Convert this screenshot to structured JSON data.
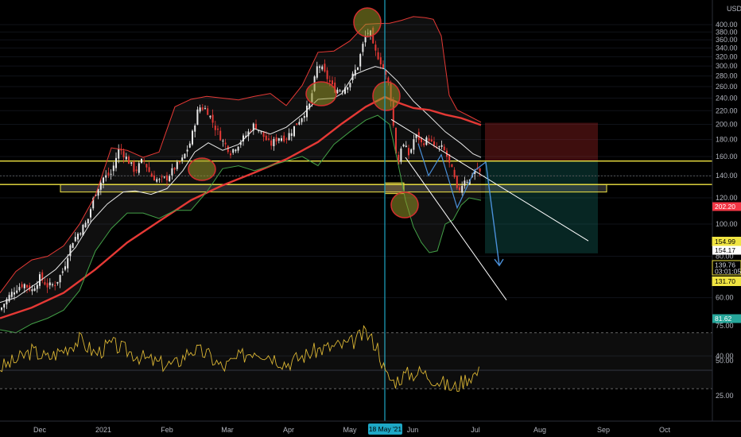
{
  "chart_data": {
    "type": "candlestick",
    "currency": "USD",
    "price_axis": {
      "min": 30,
      "max": 420,
      "scale": "log",
      "ticks": [
        40,
        60,
        80,
        100,
        120,
        140,
        160,
        180,
        200,
        220,
        240,
        260,
        280,
        300,
        320,
        340,
        360,
        380,
        400
      ]
    },
    "time_axis": {
      "labels": [
        "Dec",
        "2021",
        "Feb",
        "Mar",
        "Apr",
        "May",
        "Jun",
        "Jul",
        "Aug",
        "Sep",
        "Oct"
      ],
      "crosshair_date": "18 May '21"
    },
    "price_tags": [
      {
        "value": "202.20",
        "color": "#f23645",
        "text_color": "#ffffff"
      },
      {
        "value": "154.99",
        "color": "#f0e442",
        "text_color": "#000000"
      },
      {
        "value": "154.17",
        "color": "#ffffff",
        "text_color": "#000000"
      },
      {
        "value": "139.76",
        "extra": "03:01:05",
        "color": "#000000",
        "text_color": "#d1d4dc"
      },
      {
        "value": "131.70",
        "color": "#f0e442",
        "text_color": "#000000"
      },
      {
        "value": "81.62",
        "color": "#26a69a",
        "text_color": "#ffffff"
      }
    ],
    "horizontal_levels": [
      154.99,
      131.7
    ],
    "support_zone": [
      125,
      131.7
    ],
    "series": [
      {
        "kind": "ma_fast",
        "color": "#e8e8e8",
        "values": [
          [
            0,
            58
          ],
          [
            20,
            60
          ],
          [
            45,
            66
          ],
          [
            70,
            73
          ],
          [
            95,
            85
          ],
          [
            115,
            102
          ],
          [
            135,
            115
          ],
          [
            155,
            125
          ],
          [
            170,
            126
          ],
          [
            190,
            123
          ],
          [
            210,
            128
          ],
          [
            230,
            145
          ],
          [
            245,
            165
          ],
          [
            262,
            176
          ],
          [
            280,
            167
          ],
          [
            300,
            174
          ],
          [
            320,
            194
          ],
          [
            340,
            187
          ],
          [
            360,
            196
          ],
          [
            380,
            214
          ],
          [
            400,
            238
          ],
          [
            420,
            240
          ],
          [
            430,
            248
          ],
          [
            445,
            282
          ],
          [
            460,
            292
          ],
          [
            472,
            299
          ],
          [
            484,
            294
          ],
          [
            500,
            270
          ],
          [
            520,
            235
          ],
          [
            540,
            212
          ],
          [
            560,
            190
          ],
          [
            580,
            175
          ],
          [
            595,
            163
          ],
          [
            605,
            159
          ]
        ]
      },
      {
        "kind": "ma_slow",
        "color": "#e53935",
        "values": [
          [
            0,
            52
          ],
          [
            40,
            56
          ],
          [
            80,
            62
          ],
          [
            120,
            73
          ],
          [
            160,
            88
          ],
          [
            200,
            102
          ],
          [
            240,
            118
          ],
          [
            280,
            131
          ],
          [
            320,
            143
          ],
          [
            360,
            157
          ],
          [
            400,
            177
          ],
          [
            430,
            201
          ],
          [
            460,
            226
          ],
          [
            484,
            242
          ],
          [
            500,
            233
          ],
          [
            520,
            224
          ],
          [
            540,
            221
          ],
          [
            560,
            214
          ],
          [
            580,
            209
          ],
          [
            605,
            199
          ]
        ]
      },
      {
        "kind": "band_upper",
        "color": "#e53935",
        "values": [
          [
            0,
            62
          ],
          [
            20,
            72
          ],
          [
            40,
            78
          ],
          [
            60,
            80
          ],
          [
            80,
            86
          ],
          [
            100,
            100
          ],
          [
            120,
            122
          ],
          [
            140,
            170
          ],
          [
            160,
            167
          ],
          [
            180,
            159
          ],
          [
            200,
            165
          ],
          [
            220,
            226
          ],
          [
            240,
            238
          ],
          [
            260,
            243
          ],
          [
            280,
            240
          ],
          [
            300,
            237
          ],
          [
            320,
            243
          ],
          [
            340,
            248
          ],
          [
            360,
            228
          ],
          [
            380,
            262
          ],
          [
            400,
            330
          ],
          [
            420,
            333
          ],
          [
            440,
            357
          ],
          [
            460,
            401
          ],
          [
            475,
            403
          ],
          [
            490,
            404
          ],
          [
            505,
            412
          ],
          [
            520,
            423
          ],
          [
            535,
            420
          ],
          [
            545,
            415
          ],
          [
            555,
            370
          ],
          [
            565,
            245
          ],
          [
            575,
            221
          ],
          [
            590,
            212
          ],
          [
            605,
            203
          ]
        ]
      },
      {
        "kind": "band_lower",
        "color": "#43a047",
        "values": [
          [
            0,
            48
          ],
          [
            20,
            47
          ],
          [
            40,
            50
          ],
          [
            60,
            52
          ],
          [
            80,
            55
          ],
          [
            100,
            63
          ],
          [
            120,
            83
          ],
          [
            140,
            97
          ],
          [
            160,
            108
          ],
          [
            180,
            108
          ],
          [
            200,
            104
          ],
          [
            220,
            110
          ],
          [
            240,
            110
          ],
          [
            260,
            125
          ],
          [
            280,
            147
          ],
          [
            300,
            150
          ],
          [
            320,
            145
          ],
          [
            340,
            150
          ],
          [
            360,
            155
          ],
          [
            380,
            160
          ],
          [
            400,
            150
          ],
          [
            420,
            174
          ],
          [
            440,
            190
          ],
          [
            460,
            206
          ],
          [
            475,
            213
          ],
          [
            490,
            200
          ],
          [
            500,
            155
          ],
          [
            510,
            118
          ],
          [
            520,
            98
          ],
          [
            530,
            88
          ],
          [
            540,
            82
          ],
          [
            550,
            83
          ],
          [
            560,
            100
          ],
          [
            570,
            103
          ],
          [
            580,
            114
          ],
          [
            590,
            120
          ],
          [
            605,
            118
          ]
        ]
      },
      {
        "kind": "price_path",
        "values": [
          [
            0,
            55
          ],
          [
            10,
            60
          ],
          [
            20,
            64
          ],
          [
            30,
            66
          ],
          [
            40,
            63
          ],
          [
            50,
            69
          ],
          [
            60,
            65
          ],
          [
            70,
            66
          ],
          [
            80,
            73
          ],
          [
            90,
            88
          ],
          [
            100,
            95
          ],
          [
            110,
            102
          ],
          [
            120,
            125
          ],
          [
            130,
            138
          ],
          [
            140,
            142
          ],
          [
            150,
            170
          ],
          [
            160,
            157
          ],
          [
            170,
            144
          ],
          [
            180,
            157
          ],
          [
            190,
            140
          ],
          [
            200,
            135
          ],
          [
            210,
            138
          ],
          [
            220,
            148
          ],
          [
            230,
            157
          ],
          [
            240,
            178
          ],
          [
            250,
            226
          ],
          [
            260,
            222
          ],
          [
            270,
            197
          ],
          [
            280,
            178
          ],
          [
            290,
            165
          ],
          [
            300,
            175
          ],
          [
            310,
            186
          ],
          [
            320,
            200
          ],
          [
            330,
            186
          ],
          [
            340,
            173
          ],
          [
            350,
            183
          ],
          [
            360,
            182
          ],
          [
            370,
            196
          ],
          [
            380,
            212
          ],
          [
            390,
            230
          ],
          [
            400,
            306
          ],
          [
            410,
            280
          ],
          [
            420,
            255
          ],
          [
            430,
            255
          ],
          [
            440,
            268
          ],
          [
            450,
            301
          ],
          [
            460,
            372
          ],
          [
            465,
            385
          ],
          [
            470,
            335
          ],
          [
            475,
            323
          ],
          [
            480,
            305
          ],
          [
            485,
            280
          ],
          [
            490,
            260
          ],
          [
            495,
            195
          ],
          [
            500,
            145
          ],
          [
            505,
            175
          ],
          [
            510,
            170
          ],
          [
            515,
            160
          ],
          [
            520,
            180
          ],
          [
            525,
            185
          ],
          [
            530,
            175
          ],
          [
            540,
            182
          ],
          [
            545,
            170
          ],
          [
            555,
            170
          ],
          [
            560,
            165
          ],
          [
            565,
            152
          ],
          [
            570,
            142
          ],
          [
            575,
            125
          ],
          [
            580,
            130
          ],
          [
            585,
            138
          ],
          [
            590,
            134
          ],
          [
            595,
            144
          ],
          [
            600,
            147
          ],
          [
            605,
            141
          ]
        ]
      }
    ],
    "oscillator": {
      "ticks": [
        25,
        50,
        75
      ],
      "color": "#d9b433",
      "values": [
        [
          0,
          45
        ],
        [
          20,
          50
        ],
        [
          40,
          57
        ],
        [
          60,
          52
        ],
        [
          80,
          58
        ],
        [
          100,
          65
        ],
        [
          120,
          55
        ],
        [
          140,
          62
        ],
        [
          160,
          57
        ],
        [
          180,
          52
        ],
        [
          200,
          48
        ],
        [
          220,
          47
        ],
        [
          240,
          58
        ],
        [
          260,
          55
        ],
        [
          280,
          45
        ],
        [
          300,
          52
        ],
        [
          320,
          58
        ],
        [
          340,
          54
        ],
        [
          360,
          48
        ],
        [
          380,
          53
        ],
        [
          400,
          58
        ],
        [
          420,
          60
        ],
        [
          440,
          62
        ],
        [
          460,
          70
        ],
        [
          475,
          60
        ],
        [
          485,
          40
        ],
        [
          495,
          35
        ],
        [
          510,
          40
        ],
        [
          530,
          42
        ],
        [
          550,
          36
        ],
        [
          570,
          30
        ],
        [
          590,
          39
        ],
        [
          605,
          42
        ]
      ]
    }
  },
  "icons": {
    "volume": "volume-icon"
  }
}
